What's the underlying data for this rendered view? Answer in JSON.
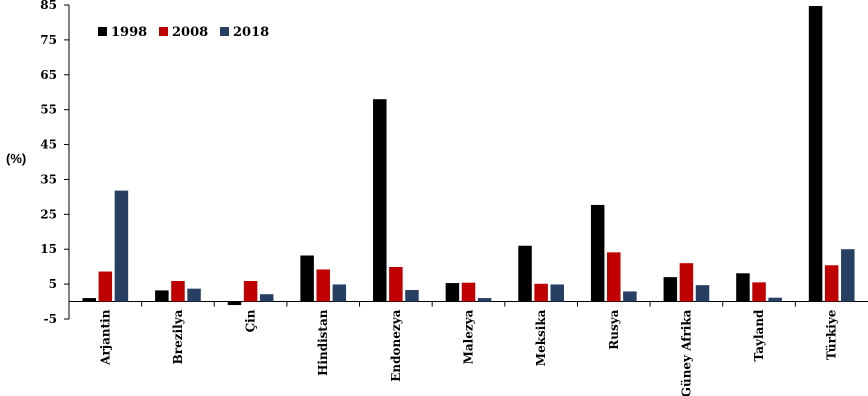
{
  "chart_data": {
    "type": "bar",
    "ylabel": "(%)",
    "ylim": [
      -5,
      85
    ],
    "yticks": [
      85,
      75,
      65,
      55,
      45,
      35,
      25,
      15,
      5,
      -5
    ],
    "legend_position": "top-left",
    "grid": false,
    "categories": [
      "Arjantin",
      "Brezilya",
      "Çin",
      "Hindistan",
      "Endonezya",
      "Malezya",
      "Meksika",
      "Rusya",
      "Güney Afrika",
      "Tayland",
      "Türkiye"
    ],
    "series": [
      {
        "name": "1998",
        "color": "#000000",
        "values": [
          1.0,
          3.2,
          -1.0,
          13.2,
          58.0,
          5.3,
          16.0,
          27.7,
          7.0,
          8.1,
          84.7
        ]
      },
      {
        "name": "2008",
        "color": "#c00000",
        "values": [
          8.6,
          5.9,
          5.9,
          9.2,
          9.9,
          5.4,
          5.1,
          14.1,
          11.0,
          5.5,
          10.4
        ]
      },
      {
        "name": "2018",
        "color": "#283f64",
        "values": [
          31.8,
          3.7,
          2.1,
          4.9,
          3.3,
          1.0,
          4.9,
          2.9,
          4.7,
          1.1,
          15.0
        ]
      }
    ]
  }
}
